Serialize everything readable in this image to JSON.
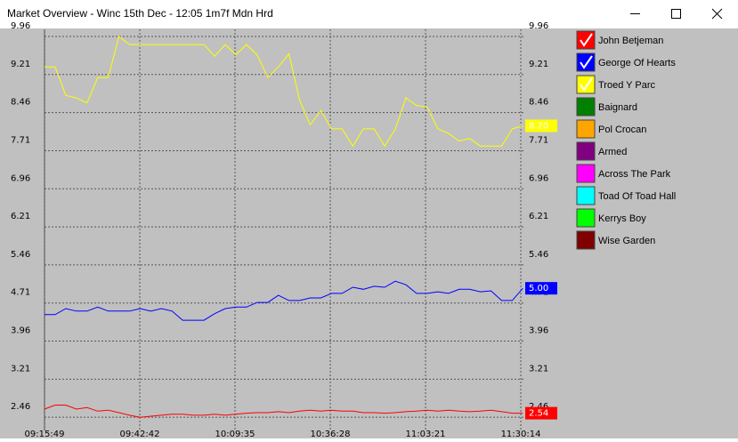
{
  "window": {
    "title": "Market Overview - Winc  15th Dec - 12:05 1m7f Mdn Hrd"
  },
  "chart_data": {
    "type": "line",
    "x": [
      "09:15:49",
      "09:18:49",
      "09:21:49",
      "09:24:49",
      "09:27:49",
      "09:30:49",
      "09:33:49",
      "09:36:49",
      "09:39:49",
      "09:42:49",
      "09:45:49",
      "09:48:49",
      "09:51:49",
      "09:54:49",
      "09:57:49",
      "10:00:49",
      "10:03:49",
      "10:06:49",
      "10:09:49",
      "10:12:49",
      "10:15:49",
      "10:18:49",
      "10:21:49",
      "10:24:49",
      "10:27:49",
      "10:30:49",
      "10:33:49",
      "10:36:49",
      "10:39:49",
      "10:42:49",
      "10:45:49",
      "10:48:49",
      "10:51:49",
      "10:54:49",
      "10:57:49",
      "11:00:49",
      "11:03:49",
      "11:06:49",
      "11:09:49",
      "11:12:49",
      "11:15:49",
      "11:18:49",
      "11:21:49",
      "11:24:49",
      "11:27:49",
      "11:30:49"
    ],
    "xlim": [
      "09:15:49",
      "11:31:29"
    ],
    "xticks": [
      "09:15:49",
      "09:42:42",
      "10:09:35",
      "10:36:28",
      "11:03:21",
      "11:30:14"
    ],
    "ylim": [
      2.2,
      10.1
    ],
    "yticks": [
      2.46,
      3.21,
      3.96,
      4.71,
      5.46,
      6.21,
      6.96,
      7.71,
      8.46,
      9.21,
      9.96
    ],
    "grid": true,
    "series": [
      {
        "name": "John Betjeman",
        "color": "#ff0000",
        "checked": true,
        "values": [
          2.62,
          2.7,
          2.7,
          2.62,
          2.65,
          2.58,
          2.6,
          2.55,
          2.5,
          2.46,
          2.48,
          2.5,
          2.52,
          2.52,
          2.5,
          2.5,
          2.52,
          2.5,
          2.52,
          2.54,
          2.55,
          2.55,
          2.57,
          2.55,
          2.58,
          2.6,
          2.58,
          2.6,
          2.58,
          2.58,
          2.55,
          2.55,
          2.54,
          2.55,
          2.57,
          2.58,
          2.6,
          2.58,
          2.6,
          2.58,
          2.57,
          2.58,
          2.6,
          2.57,
          2.54,
          2.54
        ],
        "last_label": "2.54"
      },
      {
        "name": "George Of Hearts",
        "color": "#0000ff",
        "checked": true,
        "values": [
          4.48,
          4.48,
          4.6,
          4.55,
          4.55,
          4.63,
          4.55,
          4.55,
          4.55,
          4.6,
          4.55,
          4.6,
          4.55,
          4.37,
          4.37,
          4.37,
          4.5,
          4.6,
          4.63,
          4.63,
          4.72,
          4.72,
          4.86,
          4.76,
          4.76,
          4.81,
          4.81,
          4.9,
          4.9,
          5.02,
          4.98,
          5.04,
          5.02,
          5.14,
          5.07,
          4.9,
          4.9,
          4.93,
          4.9,
          4.98,
          4.98,
          4.93,
          4.95,
          4.76,
          4.76,
          5.0
        ],
        "last_label": "5.00"
      },
      {
        "name": "Troed Y Parc",
        "color": "#ffff00",
        "checked": true,
        "values": [
          9.36,
          9.36,
          8.8,
          8.75,
          8.65,
          9.15,
          9.15,
          9.96,
          9.8,
          9.8,
          9.8,
          9.8,
          9.8,
          9.8,
          9.8,
          9.8,
          9.57,
          9.8,
          9.6,
          9.8,
          9.6,
          9.15,
          9.36,
          9.62,
          8.7,
          8.22,
          8.5,
          8.14,
          8.14,
          7.8,
          8.14,
          8.14,
          7.8,
          8.14,
          8.75,
          8.6,
          8.57,
          8.14,
          8.05,
          7.9,
          7.95,
          7.8,
          7.8,
          7.8,
          8.14,
          8.2
        ],
        "last_label": "8.20"
      },
      {
        "name": "Baignard",
        "color": "#008000",
        "checked": false
      },
      {
        "name": "Pol Crocan",
        "color": "#ffa500",
        "checked": false
      },
      {
        "name": "Armed",
        "color": "#800080",
        "checked": false
      },
      {
        "name": "Across The Park",
        "color": "#ff00ff",
        "checked": false
      },
      {
        "name": "Toad Of Toad Hall",
        "color": "#00ffff",
        "checked": false
      },
      {
        "name": "Kerrys Boy",
        "color": "#00ff00",
        "checked": false
      },
      {
        "name": "Wise Garden",
        "color": "#800000",
        "checked": false
      }
    ]
  }
}
